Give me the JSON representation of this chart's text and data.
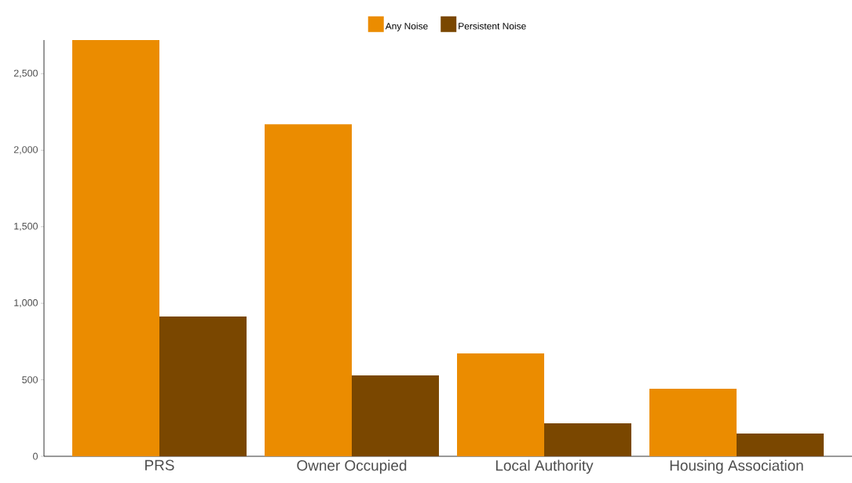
{
  "chart_data": {
    "type": "bar",
    "categories": [
      "PRS",
      "Owner Occupied",
      "Local Authority",
      "Housing Association"
    ],
    "series": [
      {
        "name": "Any Noise",
        "color": "#eb8c00",
        "values": [
          2720,
          2170,
          672,
          441
        ]
      },
      {
        "name": "Persistent Noise",
        "color": "#7a4700",
        "values": [
          914,
          529,
          216,
          149
        ]
      }
    ],
    "ylim": [
      0,
      2720
    ],
    "yticks": [
      0,
      500,
      {
        "value": 1000,
        "label": "1,000"
      },
      {
        "value": 1500,
        "label": "1,500"
      },
      {
        "value": 2000,
        "label": "2,000"
      },
      {
        "value": 2500,
        "label": "2,500"
      }
    ],
    "grid": false,
    "legend": "top"
  }
}
